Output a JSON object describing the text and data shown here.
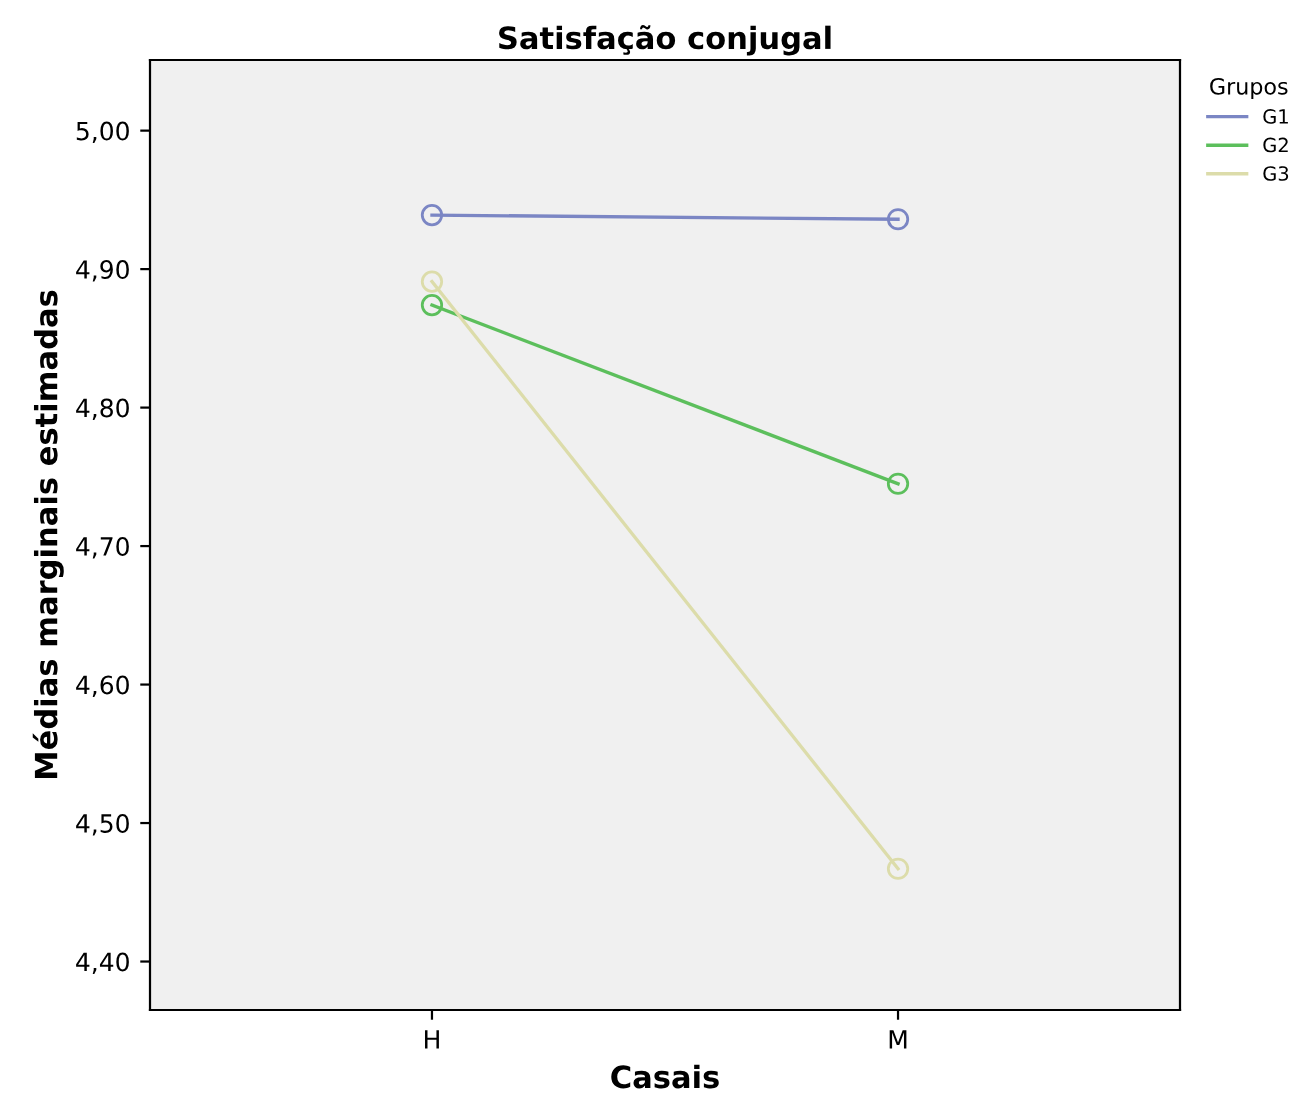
{
  "chart_data": {
    "type": "line",
    "title": "Satisfação conjugal",
    "xlabel": "Casais",
    "ylabel": "Médias marginais estimadas",
    "legend_title": "Grupos",
    "categories": [
      "H",
      "M"
    ],
    "series": [
      {
        "name": "G1",
        "color": "#7b86c4",
        "values": [
          4.939,
          4.936
        ]
      },
      {
        "name": "G2",
        "color": "#5cbf5c",
        "values": [
          4.874,
          4.745
        ]
      },
      {
        "name": "G3",
        "color": "#dcdcaa",
        "values": [
          4.891,
          4.467
        ]
      }
    ],
    "ylim": [
      4.365,
      5.051
    ],
    "yticks": [
      {
        "value": 4.4,
        "label": "4,40"
      },
      {
        "value": 4.5,
        "label": "4,50"
      },
      {
        "value": 4.6,
        "label": "4,60"
      },
      {
        "value": 4.7,
        "label": "4,70"
      },
      {
        "value": 4.8,
        "label": "4,80"
      },
      {
        "value": 4.9,
        "label": "4,90"
      },
      {
        "value": 5.0,
        "label": "5,00"
      }
    ],
    "marker": "circle",
    "line_style": "solid",
    "legend": "top right",
    "grid": false
  }
}
